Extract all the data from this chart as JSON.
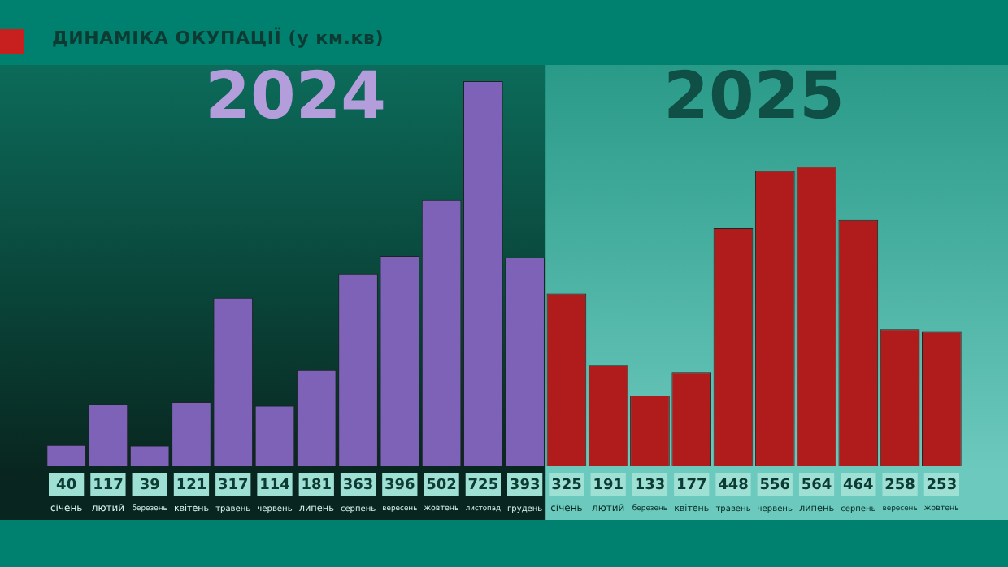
{
  "chart_data": {
    "type": "bar",
    "title": "ДИНАМІКА ОКУПАЦІЇ (у км.кв)",
    "categories": [
      "січень",
      "лютий",
      "березень",
      "квітень",
      "травень",
      "червень",
      "липень",
      "серпень",
      "вересень",
      "жовтень",
      "листопад",
      "грудень",
      "січень",
      "лютий",
      "березень",
      "квітень",
      "травень",
      "червень",
      "липень",
      "серпень",
      "вересень",
      "жовтень"
    ],
    "series": [
      {
        "name": "2024",
        "color": "#7e62b8",
        "values": [
          40,
          117,
          39,
          121,
          317,
          114,
          181,
          363,
          396,
          502,
          725,
          393,
          null,
          null,
          null,
          null,
          null,
          null,
          null,
          null,
          null,
          null
        ]
      },
      {
        "name": "2025",
        "color": "#b01c1c",
        "values": [
          null,
          null,
          null,
          null,
          null,
          null,
          null,
          null,
          null,
          null,
          null,
          null,
          325,
          191,
          133,
          177,
          448,
          556,
          564,
          464,
          258,
          253
        ]
      }
    ],
    "data_labels": true,
    "legend": false
  }
}
